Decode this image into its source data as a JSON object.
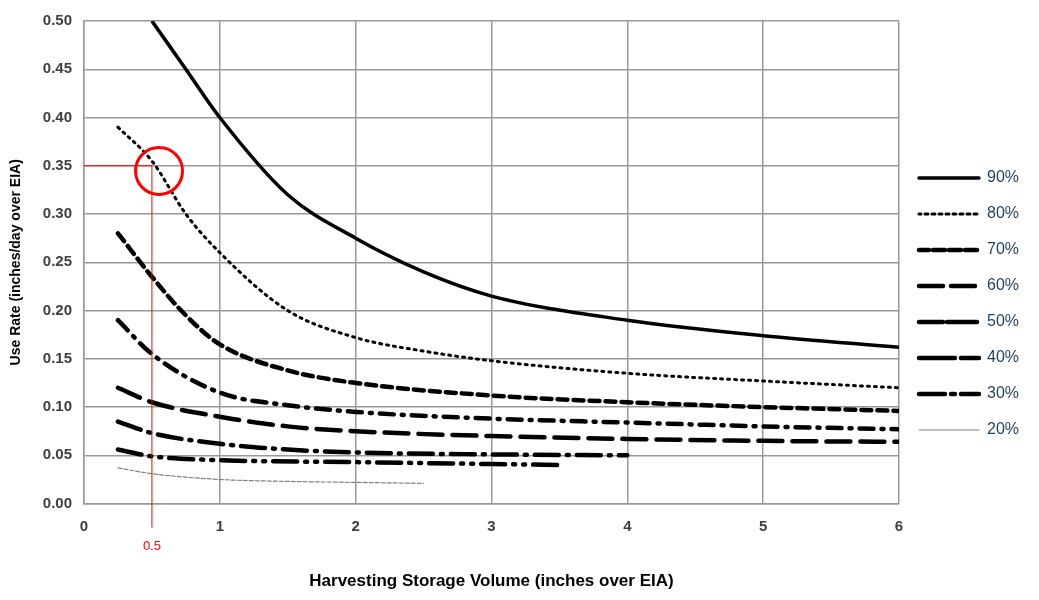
{
  "chart_data": {
    "type": "line",
    "xlabel": "Harvesting Storage Volume (inches over EIA)",
    "ylabel": "Use Rate (inches/day over EIA)",
    "xlim": [
      0,
      6
    ],
    "xticks": [
      0,
      1,
      2,
      3,
      4,
      5,
      6
    ],
    "ylim": [
      0,
      0.5
    ],
    "yticks": [
      {
        "value": 0,
        "label": "0.00"
      },
      {
        "value": 0.05,
        "label": "0.05"
      },
      {
        "value": 0.1,
        "label": "0.10"
      },
      {
        "value": 0.15,
        "label": "0.15"
      },
      {
        "value": 0.2,
        "label": "0.20"
      },
      {
        "value": 0.25,
        "label": "0.25"
      },
      {
        "value": 0.3,
        "label": "0.30"
      },
      {
        "value": 0.35,
        "label": "0.35"
      },
      {
        "value": 0.4,
        "label": "0.40"
      },
      {
        "value": 0.45,
        "label": "0.45"
      },
      {
        "value": 0.5,
        "label": "0.50"
      }
    ],
    "grid": true,
    "legend": "right",
    "marker": "none",
    "series": [
      {
        "name": "90%",
        "color": "#000000",
        "line_style": "solid",
        "x": [
          0.5,
          0.75,
          1,
          1.5,
          2,
          2.5,
          3,
          4,
          5,
          6
        ],
        "values": [
          0.5,
          0.45,
          0.4,
          0.32,
          0.275,
          0.24,
          0.215,
          0.19,
          0.174,
          0.162
        ]
      },
      {
        "name": "80%",
        "color": "#000000",
        "line_style": "dotted",
        "x": [
          0.25,
          0.5,
          0.75,
          1,
          1.5,
          2,
          2.5,
          3,
          4,
          5,
          6
        ],
        "values": [
          0.39,
          0.355,
          0.3,
          0.26,
          0.2,
          0.172,
          0.158,
          0.148,
          0.135,
          0.127,
          0.12
        ]
      },
      {
        "name": "70%",
        "color": "#000000",
        "line_style": "dashed",
        "x": [
          0.25,
          0.5,
          0.75,
          1,
          1.5,
          2,
          3,
          4,
          5,
          6
        ],
        "values": [
          0.28,
          0.235,
          0.195,
          0.165,
          0.138,
          0.125,
          0.112,
          0.105,
          0.1,
          0.096
        ]
      },
      {
        "name": "60%",
        "color": "#000000",
        "line_style": "dashdot",
        "x": [
          0.25,
          0.5,
          1,
          1.5,
          2,
          3,
          4,
          5,
          6
        ],
        "values": [
          0.19,
          0.155,
          0.115,
          0.102,
          0.095,
          0.088,
          0.084,
          0.08,
          0.077
        ]
      },
      {
        "name": "50%",
        "color": "#000000",
        "line_style": "longdash",
        "x": [
          0.25,
          0.5,
          1,
          1.5,
          2,
          3,
          4,
          5,
          6
        ],
        "values": [
          0.12,
          0.105,
          0.09,
          0.08,
          0.075,
          0.07,
          0.067,
          0.065,
          0.064
        ]
      },
      {
        "name": "40%",
        "color": "#000000",
        "line_style": "longdashdot",
        "x": [
          0.25,
          0.5,
          1,
          1.5,
          2,
          3,
          4
        ],
        "values": [
          0.085,
          0.073,
          0.062,
          0.056,
          0.053,
          0.051,
          0.05
        ]
      },
      {
        "name": "30%",
        "color": "#000000",
        "line_style": "longdashdotdot",
        "x": [
          0.25,
          0.5,
          1,
          2,
          3,
          3.5
        ],
        "values": [
          0.056,
          0.049,
          0.045,
          0.043,
          0.041,
          0.04
        ]
      },
      {
        "name": "20%",
        "color": "#808080",
        "line_style": "finedash",
        "x": [
          0.25,
          0.5,
          1,
          1.5,
          2,
          2.5
        ],
        "values": [
          0.037,
          0.031,
          0.025,
          0.023,
          0.022,
          0.021
        ]
      }
    ],
    "ref_lines": [
      {
        "axis": "x",
        "value": 0.5,
        "label": "0.5",
        "color": "#ff0000"
      },
      {
        "axis": "y",
        "value": 0.35,
        "color": "#ff0000"
      }
    ]
  }
}
